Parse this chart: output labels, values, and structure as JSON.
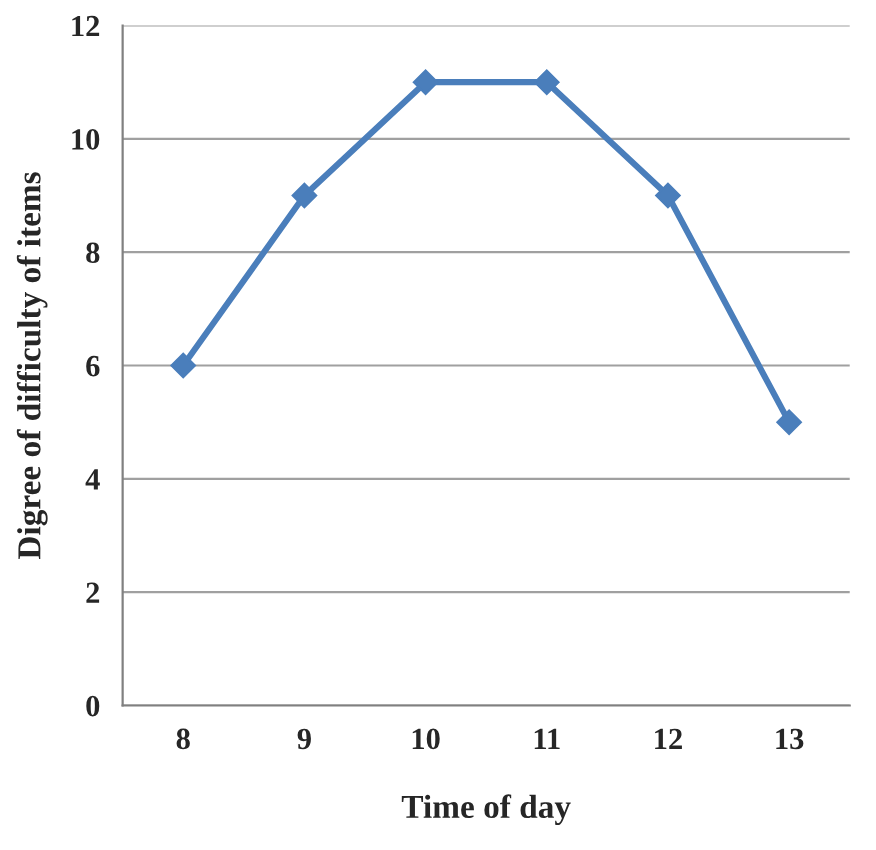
{
  "chart_data": {
    "type": "line",
    "xlabel": "Time of day",
    "ylabel": "Digree of difficulty of items",
    "categories": [
      "8",
      "9",
      "10",
      "11",
      "12",
      "13"
    ],
    "series": [
      {
        "color": "#4a7ebb",
        "values": [
          6,
          9,
          11,
          11,
          9,
          5
        ]
      }
    ],
    "ylim": [
      0,
      12
    ],
    "yticks": [
      0,
      2,
      4,
      6,
      8,
      10,
      12
    ],
    "grid": "y",
    "marker": "diamond",
    "line_style": "solid",
    "legend": false
  }
}
